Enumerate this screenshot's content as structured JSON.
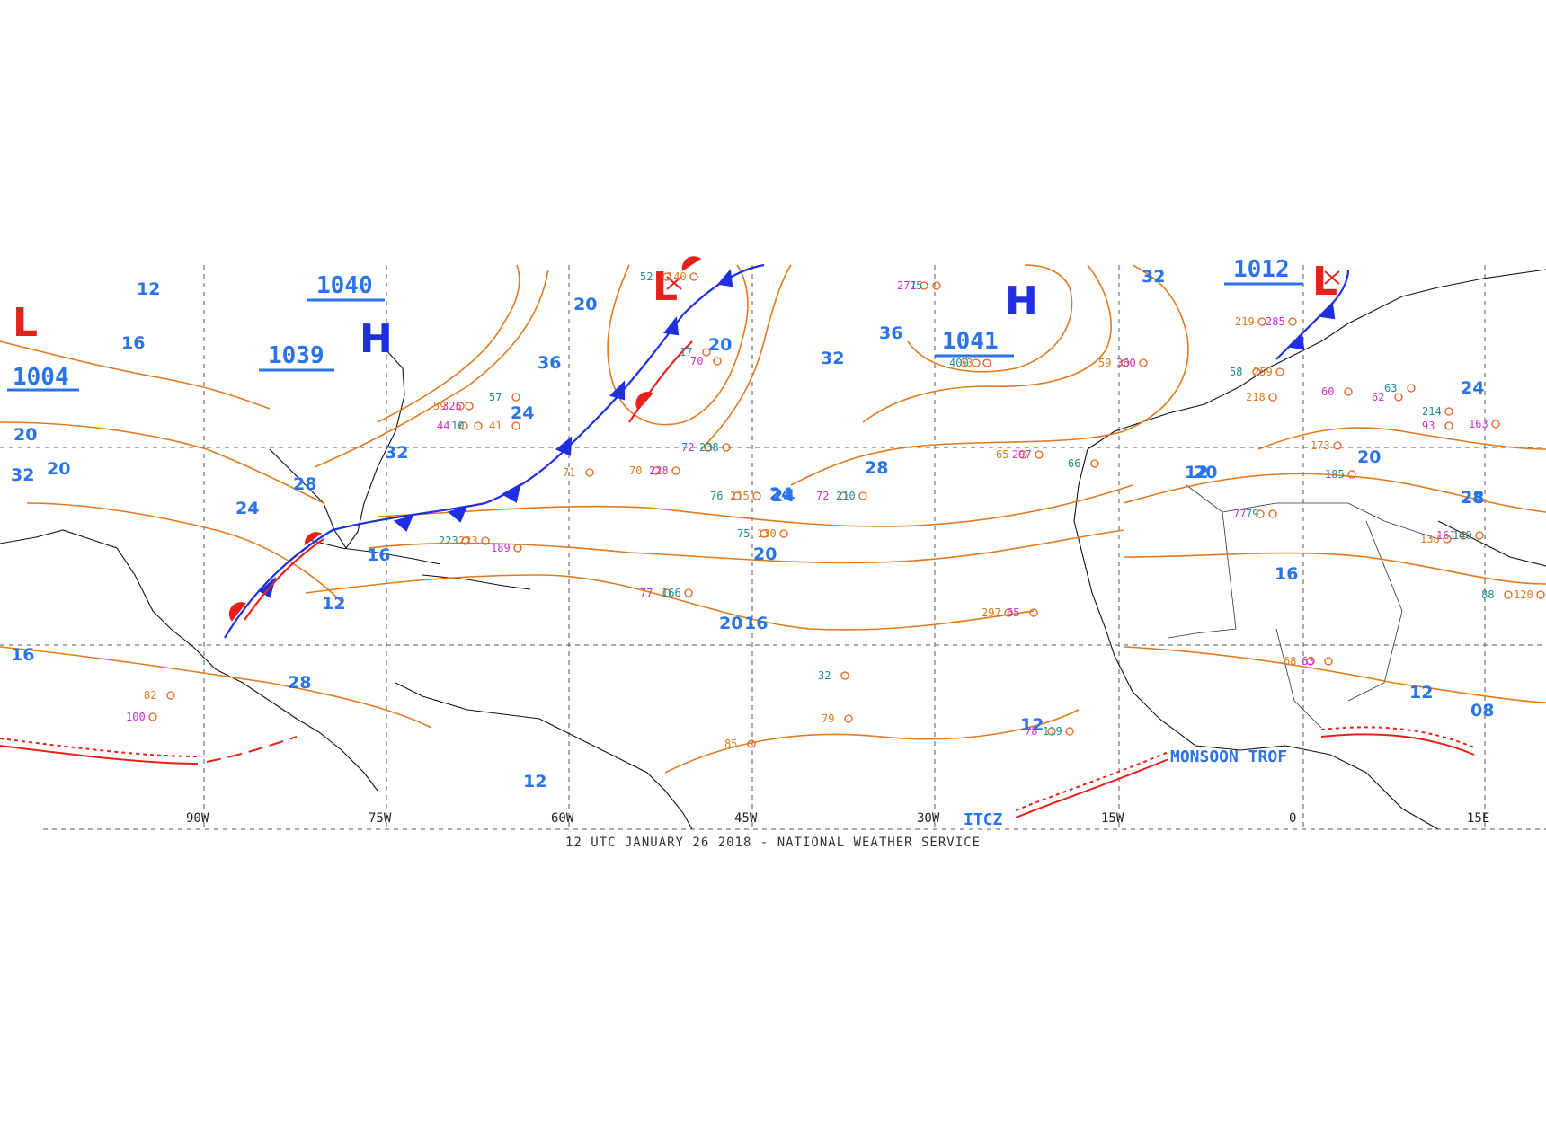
{
  "footer": "12 UTC JANUARY 26 2018 - NATIONAL WEATHER SERVICE",
  "colors": {
    "isobar": "#e07a1e",
    "label": "#2a73e8",
    "cold_front": "#1f2fe0",
    "warm_front": "#e8201a",
    "itcz": "#e8201a",
    "grid": "#555555"
  },
  "longitude_labels": [
    "90W",
    "75W",
    "60W",
    "45W",
    "30W",
    "15W",
    "0",
    "15E"
  ],
  "isobar_labels": [
    "12",
    "16",
    "20",
    "24",
    "28",
    "32",
    "36",
    "24",
    "20",
    "16",
    "12",
    "20",
    "28",
    "32",
    "36",
    "24",
    "28",
    "32",
    "20",
    "16",
    "12",
    "20",
    "24",
    "28",
    "32",
    "20",
    "24",
    "20",
    "24",
    "16",
    "12",
    "12",
    "08",
    "12",
    "16",
    "20"
  ],
  "pressure_centers": [
    {
      "type": "L",
      "value": "1004"
    },
    {
      "type": "H",
      "value": "1040"
    },
    {
      "type": "H",
      "value": "1039"
    },
    {
      "type": "L",
      "value": ""
    },
    {
      "type": "H",
      "value": "1041"
    },
    {
      "type": "L",
      "value": "1012"
    }
  ],
  "features": {
    "itcz": "ITCZ",
    "monsoon": "MONSOON TROF"
  },
  "station_values": [
    "52",
    "140",
    "70",
    "17",
    "59",
    "325",
    "57",
    "41",
    "44",
    "10",
    "71",
    "72",
    "238",
    "70",
    "228",
    "76",
    "215",
    "72",
    "210",
    "65",
    "297",
    "66",
    "59",
    "360",
    "75",
    "130",
    "77",
    "166",
    "85",
    "78",
    "119",
    "82",
    "100",
    "32",
    "79",
    "77",
    "79",
    "68",
    "63",
    "88",
    "120",
    "161",
    "140",
    "138",
    "163",
    "185",
    "173",
    "93",
    "214",
    "218",
    "62",
    "63",
    "219",
    "285",
    "58",
    "259",
    "60",
    "400",
    "63",
    "271",
    "75",
    "297",
    "65",
    "223",
    "223",
    "189"
  ]
}
